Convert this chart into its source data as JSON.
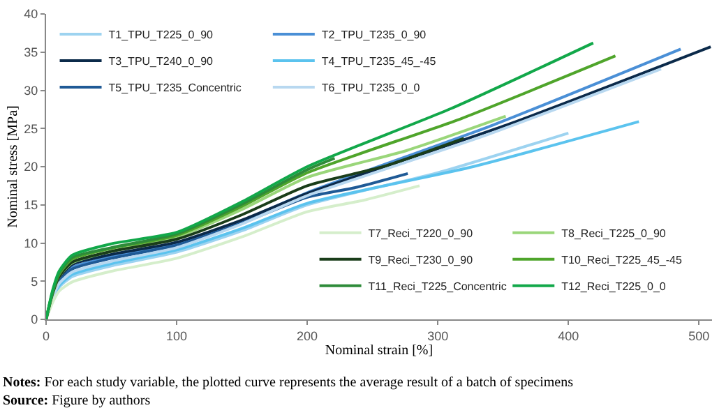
{
  "chart_data": {
    "type": "line",
    "xlabel": "Nominal strain [%]",
    "ylabel": "Nominal stress [MPa]",
    "xlim": [
      0,
      510
    ],
    "xticks": [
      0,
      100,
      200,
      300,
      400,
      500
    ],
    "ylim": [
      0,
      40
    ],
    "yticks": [
      0,
      5,
      10,
      15,
      20,
      25,
      30,
      35,
      40
    ],
    "grid": false,
    "legend": "top left",
    "marker": "none",
    "line_style": "solid",
    "annotations": [
      "Notes: For each study variable, the plotted curve represents the average result of a batch of specimens",
      "Source: Figure by authors"
    ],
    "series": [
      {
        "name": "T1_TPU_T225_0_90",
        "color": "#9dd3f0",
        "x": [
          0,
          5,
          10,
          20,
          50,
          100,
          150,
          200,
          300,
          400
        ],
        "values": [
          0,
          2.5,
          4.2,
          5.6,
          7.0,
          8.8,
          11.6,
          15.0,
          19.2,
          24.4
        ]
      },
      {
        "name": "T2_TPU_T235_0_90",
        "color": "#4a8fd6",
        "x": [
          0,
          5,
          10,
          20,
          50,
          100,
          150,
          200,
          343,
          486
        ],
        "values": [
          0,
          3.1,
          5.1,
          6.8,
          8.2,
          9.9,
          12.9,
          16.6,
          25.5,
          35.4
        ]
      },
      {
        "name": "T3_TPU_T240_0_90",
        "color": "#0b2a4a",
        "x": [
          0,
          5,
          10,
          20,
          50,
          100,
          150,
          200,
          355,
          509
        ],
        "values": [
          0,
          3.2,
          5.4,
          7.2,
          8.5,
          10.1,
          13.0,
          16.5,
          25.6,
          35.7
        ]
      },
      {
        "name": "T4_TPU_T235_45_-45",
        "color": "#5bc3ee",
        "x": [
          0,
          5,
          10,
          20,
          50,
          100,
          150,
          200,
          327,
          454
        ],
        "values": [
          0,
          2.7,
          4.4,
          5.9,
          7.3,
          9.1,
          11.9,
          15.2,
          20.0,
          25.9
        ]
      },
      {
        "name": "T5_TPU_T235_Concentric",
        "color": "#1f5a96",
        "x": [
          0,
          5,
          10,
          20,
          50,
          100,
          150,
          200,
          238,
          277
        ],
        "values": [
          0,
          3.0,
          5.0,
          6.6,
          8.0,
          9.7,
          12.6,
          16.0,
          17.3,
          19.1
        ]
      },
      {
        "name": "T6_TPU_T235_0_0",
        "color": "#b8d8f0",
        "x": [
          0,
          5,
          10,
          20,
          50,
          100,
          150,
          200,
          335,
          471
        ],
        "values": [
          0,
          2.8,
          4.7,
          6.2,
          7.6,
          9.4,
          12.5,
          16.2,
          24.0,
          32.8
        ]
      },
      {
        "name": "T7_Reci_T220_0_90",
        "color": "#d5eecb",
        "x": [
          0,
          5,
          10,
          20,
          50,
          100,
          150,
          200,
          243,
          286
        ],
        "values": [
          0,
          2.2,
          3.7,
          4.9,
          6.3,
          8.0,
          10.8,
          14.1,
          15.6,
          17.5
        ]
      },
      {
        "name": "T8_Reci_T225_0_90",
        "color": "#9ad67a",
        "x": [
          0,
          5,
          10,
          20,
          50,
          100,
          150,
          200,
          276,
          352
        ],
        "values": [
          0,
          3.3,
          5.6,
          7.4,
          8.9,
          10.8,
          14.4,
          18.6,
          22.1,
          26.6
        ]
      },
      {
        "name": "T9_Reci_T230_0_90",
        "color": "#1a3d1a",
        "x": [
          0,
          5,
          10,
          20,
          50,
          100,
          150,
          200,
          260,
          320
        ],
        "values": [
          0,
          3.4,
          5.6,
          7.5,
          8.9,
          10.5,
          13.7,
          17.5,
          20.1,
          23.7
        ]
      },
      {
        "name": "T10_Reci_T225_45_-45",
        "color": "#4fa52b",
        "x": [
          0,
          5,
          10,
          20,
          50,
          100,
          150,
          200,
          318,
          436
        ],
        "values": [
          0,
          3.6,
          5.9,
          7.9,
          9.3,
          11.0,
          14.8,
          19.2,
          26.3,
          34.5
        ]
      },
      {
        "name": "T11_Reci_T225_Concentric",
        "color": "#2e8b3a",
        "x": [
          0,
          5,
          10,
          20,
          50,
          100,
          150,
          200,
          221
        ],
        "values": [
          0,
          3.6,
          6.1,
          8.1,
          9.4,
          11.2,
          15.1,
          19.6,
          21.1
        ]
      },
      {
        "name": "T12_Reci_T225_0_0",
        "color": "#12a84a",
        "x": [
          0,
          5,
          10,
          20,
          50,
          100,
          150,
          200,
          310,
          419
        ],
        "values": [
          0,
          3.8,
          6.3,
          8.4,
          9.9,
          11.4,
          15.4,
          20.0,
          27.6,
          36.2
        ]
      }
    ]
  }
}
